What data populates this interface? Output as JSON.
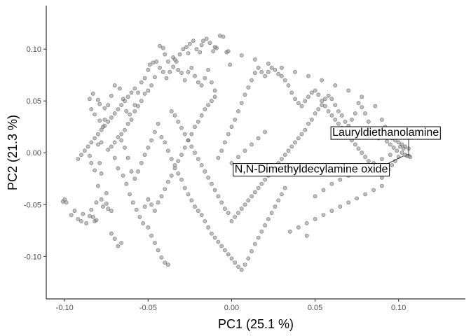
{
  "chart_data": {
    "type": "scatter",
    "xlabel": "PC1 (25.1 %)",
    "ylabel": "PC2 (21.3 %)",
    "xlim": [
      -0.111,
      0.14
    ],
    "ylim": [
      -0.141,
      0.142
    ],
    "xticks": [
      -0.1,
      -0.05,
      0.0,
      0.05,
      0.1
    ],
    "xtick_labels": [
      "-0.10",
      "-0.05",
      "0.00",
      "0.05",
      "0.10"
    ],
    "yticks": [
      -0.1,
      -0.05,
      0.0,
      0.05,
      0.1
    ],
    "ytick_labels": [
      "-0.10",
      "-0.05",
      "0.00",
      "0.05",
      "0.10"
    ],
    "grid": false,
    "point_color": "#808080",
    "point_stroke": "#4d4d4d",
    "points": [
      [
        -0.101,
        -0.047
      ],
      [
        -0.1,
        -0.045
      ],
      [
        -0.099,
        -0.048
      ],
      [
        -0.096,
        -0.06
      ],
      [
        -0.094,
        -0.056
      ],
      [
        -0.092,
        -0.064
      ],
      [
        -0.09,
        -0.066
      ],
      [
        -0.089,
        -0.059
      ],
      [
        -0.087,
        -0.068
      ],
      [
        -0.085,
        -0.061
      ],
      [
        -0.084,
        -0.055
      ],
      [
        -0.083,
        -0.062
      ],
      [
        -0.082,
        -0.066
      ],
      [
        -0.081,
        -0.065
      ],
      [
        -0.081,
        -0.048
      ],
      [
        -0.08,
        -0.032
      ],
      [
        -0.079,
        -0.01
      ],
      [
        -0.078,
        -0.02
      ],
      [
        -0.078,
        -0.045
      ],
      [
        -0.077,
        -0.052
      ],
      [
        -0.075,
        -0.049
      ],
      [
        -0.074,
        -0.054
      ],
      [
        -0.075,
        -0.039
      ],
      [
        -0.072,
        -0.056
      ],
      [
        -0.072,
        -0.078
      ],
      [
        -0.07,
        -0.083
      ],
      [
        -0.068,
        -0.09
      ],
      [
        -0.066,
        -0.087
      ],
      [
        -0.084,
        -0.01
      ],
      [
        -0.085,
        -0.003
      ],
      [
        -0.082,
        -0.017
      ],
      [
        -0.08,
        0.008
      ],
      [
        -0.078,
        0.01
      ],
      [
        -0.077,
        0.025
      ],
      [
        -0.076,
        0.043
      ],
      [
        -0.079,
        0.047
      ],
      [
        -0.08,
        0.051
      ],
      [
        -0.083,
        0.057
      ],
      [
        -0.085,
        0.052
      ],
      [
        -0.084,
        0.042
      ],
      [
        -0.082,
        0.037
      ],
      [
        -0.079,
        0.031
      ],
      [
        -0.076,
        0.032
      ],
      [
        -0.074,
        0.046
      ],
      [
        -0.072,
        0.055
      ],
      [
        -0.07,
        0.065
      ],
      [
        -0.067,
        0.062
      ],
      [
        -0.065,
        0.052
      ],
      [
        -0.063,
        0.04
      ],
      [
        -0.061,
        0.037
      ],
      [
        -0.058,
        0.046
      ],
      [
        -0.056,
        0.058
      ],
      [
        -0.054,
        0.068
      ],
      [
        -0.052,
        0.072
      ],
      [
        -0.05,
        0.08
      ],
      [
        -0.049,
        0.085
      ],
      [
        -0.047,
        0.087
      ],
      [
        -0.045,
        0.088
      ],
      [
        -0.043,
        0.082
      ],
      [
        -0.041,
        0.078
      ],
      [
        -0.039,
        0.072
      ],
      [
        -0.037,
        0.078
      ],
      [
        -0.035,
        0.083
      ],
      [
        -0.033,
        0.088
      ],
      [
        -0.031,
        0.095
      ],
      [
        -0.029,
        0.1
      ],
      [
        -0.027,
        0.102
      ],
      [
        -0.025,
        0.105
      ],
      [
        -0.023,
        0.108
      ],
      [
        -0.021,
        0.1
      ],
      [
        -0.019,
        0.097
      ],
      [
        -0.017,
        0.108
      ],
      [
        -0.015,
        0.11
      ],
      [
        -0.013,
        0.106
      ],
      [
        -0.011,
        0.098
      ],
      [
        -0.009,
        0.101
      ],
      [
        -0.007,
        0.113
      ],
      [
        -0.005,
        0.112
      ],
      [
        -0.003,
        0.097
      ],
      [
        -0.001,
        0.085
      ],
      [
        -0.043,
        0.103
      ],
      [
        -0.041,
        0.101
      ],
      [
        -0.04,
        0.095
      ],
      [
        -0.038,
        0.088
      ],
      [
        -0.035,
        0.092
      ],
      [
        -0.032,
        0.08
      ],
      [
        -0.03,
        0.077
      ],
      [
        -0.028,
        0.07
      ],
      [
        -0.026,
        0.078
      ],
      [
        -0.024,
        0.082
      ],
      [
        -0.022,
        0.074
      ],
      [
        -0.02,
        0.068
      ],
      [
        -0.018,
        0.065
      ],
      [
        -0.016,
        0.072
      ],
      [
        -0.014,
        0.08
      ],
      [
        -0.012,
        0.068
      ],
      [
        -0.01,
        0.06
      ],
      [
        -0.046,
        0.073
      ],
      [
        -0.048,
        0.065
      ],
      [
        -0.05,
        0.06
      ],
      [
        -0.052,
        0.057
      ],
      [
        -0.054,
        0.05
      ],
      [
        -0.056,
        0.045
      ],
      [
        -0.058,
        0.04
      ],
      [
        -0.06,
        0.032
      ],
      [
        -0.062,
        0.028
      ],
      [
        -0.064,
        0.022
      ],
      [
        -0.066,
        0.018
      ],
      [
        -0.068,
        0.015
      ],
      [
        -0.07,
        0.01
      ],
      [
        -0.072,
        0.006
      ],
      [
        -0.074,
        0.003
      ],
      [
        -0.07,
        -0.005
      ],
      [
        -0.068,
        -0.015
      ],
      [
        -0.065,
        -0.022
      ],
      [
        -0.063,
        -0.03
      ],
      [
        -0.061,
        -0.04
      ],
      [
        -0.059,
        -0.048
      ],
      [
        -0.057,
        -0.055
      ],
      [
        -0.055,
        -0.062
      ],
      [
        -0.053,
        -0.068
      ],
      [
        -0.05,
        -0.072
      ],
      [
        -0.048,
        -0.08
      ],
      [
        -0.046,
        -0.087
      ],
      [
        -0.044,
        -0.094
      ],
      [
        -0.042,
        -0.101
      ],
      [
        -0.04,
        -0.106
      ],
      [
        -0.038,
        -0.108
      ],
      [
        -0.05,
        -0.045
      ],
      [
        -0.052,
        -0.052
      ],
      [
        -0.048,
        -0.05
      ],
      [
        -0.046,
        -0.056
      ],
      [
        -0.044,
        -0.048
      ],
      [
        -0.042,
        -0.042
      ],
      [
        -0.04,
        -0.035
      ],
      [
        -0.038,
        -0.028
      ],
      [
        -0.036,
        -0.022
      ],
      [
        -0.034,
        -0.015
      ],
      [
        -0.032,
        -0.008
      ],
      [
        -0.03,
        -0.002
      ],
      [
        -0.028,
        0.005
      ],
      [
        -0.026,
        0.012
      ],
      [
        -0.024,
        0.018
      ],
      [
        -0.022,
        0.025
      ],
      [
        -0.02,
        0.03
      ],
      [
        -0.018,
        0.036
      ],
      [
        -0.016,
        0.042
      ],
      [
        -0.014,
        0.046
      ],
      [
        -0.012,
        0.05
      ],
      [
        -0.01,
        0.054
      ],
      [
        -0.044,
        0.028
      ],
      [
        -0.046,
        0.02
      ],
      [
        -0.048,
        0.012
      ],
      [
        -0.05,
        0.005
      ],
      [
        -0.052,
        -0.002
      ],
      [
        -0.054,
        -0.01
      ],
      [
        -0.056,
        -0.018
      ],
      [
        -0.058,
        -0.025
      ],
      [
        -0.06,
        -0.018
      ],
      [
        -0.062,
        -0.005
      ],
      [
        -0.064,
        0.005
      ],
      [
        -0.066,
        0.012
      ],
      [
        -0.042,
        0.015
      ],
      [
        -0.04,
        0.01
      ],
      [
        -0.038,
        0.002
      ],
      [
        -0.036,
        -0.006
      ],
      [
        -0.034,
        -0.012
      ],
      [
        -0.032,
        -0.02
      ],
      [
        -0.03,
        -0.026
      ],
      [
        -0.028,
        -0.034
      ],
      [
        -0.026,
        -0.04
      ],
      [
        -0.024,
        -0.046
      ],
      [
        -0.022,
        -0.052
      ],
      [
        -0.02,
        -0.056
      ],
      [
        -0.018,
        -0.06
      ],
      [
        -0.016,
        -0.066
      ],
      [
        -0.014,
        -0.072
      ],
      [
        -0.012,
        -0.078
      ],
      [
        -0.01,
        -0.082
      ],
      [
        -0.008,
        -0.086
      ],
      [
        -0.006,
        -0.09
      ],
      [
        -0.004,
        -0.094
      ],
      [
        -0.002,
        -0.098
      ],
      [
        0.0,
        -0.102
      ],
      [
        0.002,
        -0.106
      ],
      [
        0.004,
        -0.11
      ],
      [
        0.006,
        -0.113
      ],
      [
        0.008,
        -0.108
      ],
      [
        0.01,
        -0.102
      ],
      [
        0.012,
        -0.095
      ],
      [
        0.014,
        -0.088
      ],
      [
        0.016,
        -0.082
      ],
      [
        0.018,
        -0.076
      ],
      [
        0.02,
        -0.07
      ],
      [
        0.022,
        -0.064
      ],
      [
        0.024,
        -0.058
      ],
      [
        0.026,
        -0.052
      ],
      [
        0.028,
        -0.046
      ],
      [
        0.03,
        -0.04
      ],
      [
        0.032,
        -0.034
      ],
      [
        -0.008,
        -0.005
      ],
      [
        -0.006,
        0.002
      ],
      [
        -0.004,
        0.01
      ],
      [
        -0.002,
        0.018
      ],
      [
        0.0,
        0.025
      ],
      [
        0.002,
        0.032
      ],
      [
        0.004,
        0.04
      ],
      [
        0.006,
        0.048
      ],
      [
        0.008,
        0.056
      ],
      [
        0.01,
        0.063
      ],
      [
        0.012,
        0.07
      ],
      [
        0.014,
        0.077
      ],
      [
        0.016,
        0.082
      ],
      [
        0.018,
        0.078
      ],
      [
        0.02,
        0.074
      ],
      [
        0.022,
        0.078
      ],
      [
        0.024,
        0.082
      ],
      [
        0.026,
        0.08
      ],
      [
        0.028,
        0.076
      ],
      [
        0.03,
        0.074
      ],
      [
        0.032,
        0.07
      ],
      [
        0.034,
        0.065
      ],
      [
        0.036,
        0.058
      ],
      [
        0.038,
        0.052
      ],
      [
        0.04,
        0.048
      ],
      [
        0.042,
        0.045
      ],
      [
        0.044,
        0.05
      ],
      [
        0.046,
        0.054
      ],
      [
        0.048,
        0.058
      ],
      [
        0.05,
        0.06
      ],
      [
        0.052,
        0.056
      ],
      [
        0.054,
        0.05
      ],
      [
        0.056,
        0.045
      ],
      [
        0.058,
        0.04
      ],
      [
        0.06,
        0.036
      ],
      [
        0.062,
        0.032
      ],
      [
        0.064,
        0.028
      ],
      [
        0.066,
        0.024
      ],
      [
        0.068,
        0.02
      ],
      [
        0.07,
        0.016
      ],
      [
        0.072,
        0.012
      ],
      [
        0.074,
        0.008
      ],
      [
        0.076,
        0.004
      ],
      [
        0.078,
        0.0
      ],
      [
        0.08,
        -0.004
      ],
      [
        0.082,
        -0.008
      ],
      [
        0.084,
        -0.012
      ],
      [
        0.086,
        -0.016
      ],
      [
        0.088,
        -0.02
      ],
      [
        0.09,
        -0.024
      ],
      [
        0.092,
        -0.02
      ],
      [
        0.094,
        -0.016
      ],
      [
        0.096,
        -0.012
      ],
      [
        0.098,
        -0.008
      ],
      [
        0.1,
        -0.004
      ],
      [
        0.102,
        0.0
      ],
      [
        0.104,
        -0.002
      ],
      [
        0.105,
        -0.003
      ],
      [
        0.106,
        -0.003
      ],
      [
        0.107,
        -0.004
      ],
      [
        0.101,
        0.006
      ],
      [
        0.103,
        0.004
      ],
      [
        0.099,
        0.002
      ],
      [
        0.097,
        0.005
      ],
      [
        0.095,
        0.008
      ],
      [
        0.093,
        0.011
      ],
      [
        0.088,
        0.014
      ],
      [
        0.085,
        0.022
      ],
      [
        0.082,
        0.03
      ],
      [
        0.08,
        0.038
      ],
      [
        0.078,
        0.044
      ],
      [
        0.076,
        0.048
      ],
      [
        0.074,
        0.038
      ],
      [
        0.072,
        0.032
      ],
      [
        0.07,
        0.026
      ],
      [
        0.068,
        0.03
      ],
      [
        0.066,
        0.036
      ],
      [
        0.064,
        0.04
      ],
      [
        0.062,
        0.046
      ],
      [
        0.06,
        0.052
      ],
      [
        0.058,
        0.055
      ],
      [
        0.056,
        0.052
      ],
      [
        0.054,
        0.046
      ],
      [
        0.052,
        0.042
      ],
      [
        0.05,
        0.038
      ],
      [
        0.048,
        0.032
      ],
      [
        0.046,
        0.028
      ],
      [
        0.044,
        0.022
      ],
      [
        0.042,
        0.018
      ],
      [
        0.04,
        0.014
      ],
      [
        0.038,
        0.01
      ],
      [
        0.036,
        0.006
      ],
      [
        0.034,
        0.002
      ],
      [
        0.032,
        -0.002
      ],
      [
        0.03,
        -0.006
      ],
      [
        0.028,
        -0.01
      ],
      [
        0.026,
        -0.014
      ],
      [
        0.024,
        -0.018
      ],
      [
        0.022,
        -0.022
      ],
      [
        0.02,
        -0.026
      ],
      [
        0.018,
        -0.03
      ],
      [
        0.016,
        -0.034
      ],
      [
        0.014,
        -0.038
      ],
      [
        0.012,
        -0.042
      ],
      [
        0.01,
        -0.046
      ],
      [
        0.008,
        -0.05
      ],
      [
        0.006,
        -0.054
      ],
      [
        0.004,
        -0.058
      ],
      [
        0.002,
        -0.062
      ],
      [
        0.0,
        -0.066
      ],
      [
        0.09,
        -0.032
      ],
      [
        0.085,
        -0.036
      ],
      [
        0.08,
        -0.04
      ],
      [
        0.075,
        -0.044
      ],
      [
        0.07,
        -0.048
      ],
      [
        0.065,
        -0.052
      ],
      [
        0.06,
        -0.056
      ],
      [
        0.055,
        -0.06
      ],
      [
        0.05,
        -0.064
      ],
      [
        0.045,
        -0.068
      ],
      [
        0.04,
        -0.072
      ],
      [
        0.035,
        -0.076
      ],
      [
        0.045,
        -0.08
      ],
      [
        0.05,
        -0.042
      ],
      [
        0.055,
        -0.036
      ],
      [
        0.06,
        -0.03
      ],
      [
        0.065,
        -0.026
      ],
      [
        0.07,
        -0.022
      ],
      [
        0.075,
        -0.018
      ],
      [
        0.08,
        -0.014
      ],
      [
        0.085,
        -0.01
      ],
      [
        0.09,
        -0.006
      ],
      [
        0.095,
        -0.002
      ],
      [
        0.092,
        0.025
      ],
      [
        0.09,
        0.032
      ],
      [
        0.086,
        0.045
      ],
      [
        0.078,
        0.054
      ],
      [
        0.07,
        0.06
      ],
      [
        0.062,
        0.065
      ],
      [
        0.054,
        0.07
      ],
      [
        0.046,
        0.074
      ],
      [
        0.038,
        0.078
      ],
      [
        0.03,
        0.082
      ],
      [
        0.022,
        0.086
      ],
      [
        0.014,
        0.09
      ],
      [
        0.006,
        0.094
      ],
      [
        -0.002,
        0.098
      ],
      [
        -0.01,
        0.102
      ],
      [
        -0.018,
        0.104
      ],
      [
        -0.026,
        0.096
      ],
      [
        -0.034,
        0.09
      ],
      [
        -0.036,
        0.04
      ],
      [
        -0.034,
        0.036
      ],
      [
        -0.032,
        0.03
      ],
      [
        -0.03,
        0.024
      ],
      [
        -0.028,
        0.018
      ],
      [
        -0.026,
        0.012
      ],
      [
        -0.024,
        0.006
      ],
      [
        -0.022,
        0.0
      ],
      [
        -0.02,
        -0.006
      ],
      [
        -0.018,
        -0.012
      ],
      [
        -0.016,
        -0.018
      ],
      [
        -0.014,
        -0.024
      ],
      [
        -0.012,
        -0.03
      ],
      [
        -0.01,
        -0.036
      ],
      [
        -0.008,
        -0.042
      ],
      [
        -0.006,
        -0.048
      ],
      [
        -0.004,
        -0.054
      ],
      [
        -0.002,
        -0.058
      ],
      [
        -0.058,
        0.062
      ],
      [
        -0.06,
        0.058
      ],
      [
        -0.062,
        0.054
      ],
      [
        -0.064,
        0.05
      ],
      [
        -0.066,
        0.046
      ],
      [
        -0.068,
        0.042
      ],
      [
        -0.07,
        0.038
      ],
      [
        -0.072,
        0.034
      ],
      [
        -0.074,
        0.03
      ],
      [
        -0.076,
        0.026
      ],
      [
        -0.078,
        0.022
      ],
      [
        -0.08,
        0.018
      ],
      [
        -0.082,
        0.014
      ],
      [
        -0.084,
        0.01
      ],
      [
        -0.086,
        0.006
      ],
      [
        -0.088,
        0.002
      ],
      [
        -0.09,
        -0.002
      ],
      [
        -0.092,
        -0.006
      ],
      [
        0.106,
        0.004
      ],
      [
        0.104,
        0.006
      ],
      [
        0.102,
        0.008
      ],
      [
        0.1,
        0.01
      ],
      [
        0.098,
        0.012
      ],
      [
        0.096,
        0.014
      ],
      [
        0.094,
        0.016
      ],
      [
        0.02,
        0.02
      ],
      [
        0.016,
        0.014
      ],
      [
        0.012,
        0.008
      ],
      [
        0.008,
        0.002
      ],
      [
        0.004,
        -0.004
      ],
      [
        0.0,
        -0.01
      ]
    ],
    "annotations": [
      {
        "label": "Lauryldiethanolamine",
        "point": [
          0.106,
          -0.003
        ],
        "text_anchor": [
          0.0603,
          0.0192
        ]
      },
      {
        "label": "N,N-Dimethyldecylamine oxide",
        "point": [
          0.103,
          -0.003
        ],
        "text_anchor": [
          0.0018,
          -0.0163
        ]
      }
    ]
  }
}
